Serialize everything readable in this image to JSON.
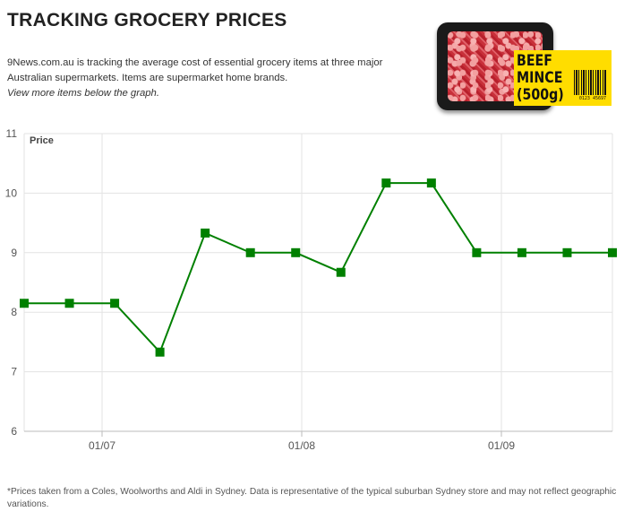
{
  "header": {
    "title": "TRACKING GROCERY PRICES",
    "intro": "9News.com.au is tracking the average cost of essential grocery items at three major Australian supermarkets. Items are supermarket home brands.",
    "intro_link": "View more items below the graph."
  },
  "product": {
    "label_lines": [
      "BEEF",
      "MINCE",
      "(500g)"
    ],
    "barcode_number": "0123 45697",
    "icon": "beef-mince-package"
  },
  "chart_data": {
    "type": "line",
    "title": "",
    "xlabel": "",
    "ylabel": "Price",
    "ylim": [
      6,
      11
    ],
    "yticks": [
      "6",
      "7",
      "8",
      "9",
      "10",
      "11"
    ],
    "xtick_labels": [
      "01/07",
      "01/08",
      "01/09"
    ],
    "grid": true,
    "legend": "none",
    "series": [
      {
        "color": "#008000",
        "marker": "square",
        "values": [
          8.15,
          8.15,
          8.15,
          7.33,
          9.33,
          9.0,
          9.0,
          8.67,
          10.17,
          10.17,
          9.0,
          9.0,
          9.0,
          9.0
        ]
      }
    ]
  },
  "footnote": "*Prices taken from a Coles, Woolworths and Aldi in Sydney. Data is representative of the typical suburban Sydney store and may not reflect geographic variations."
}
